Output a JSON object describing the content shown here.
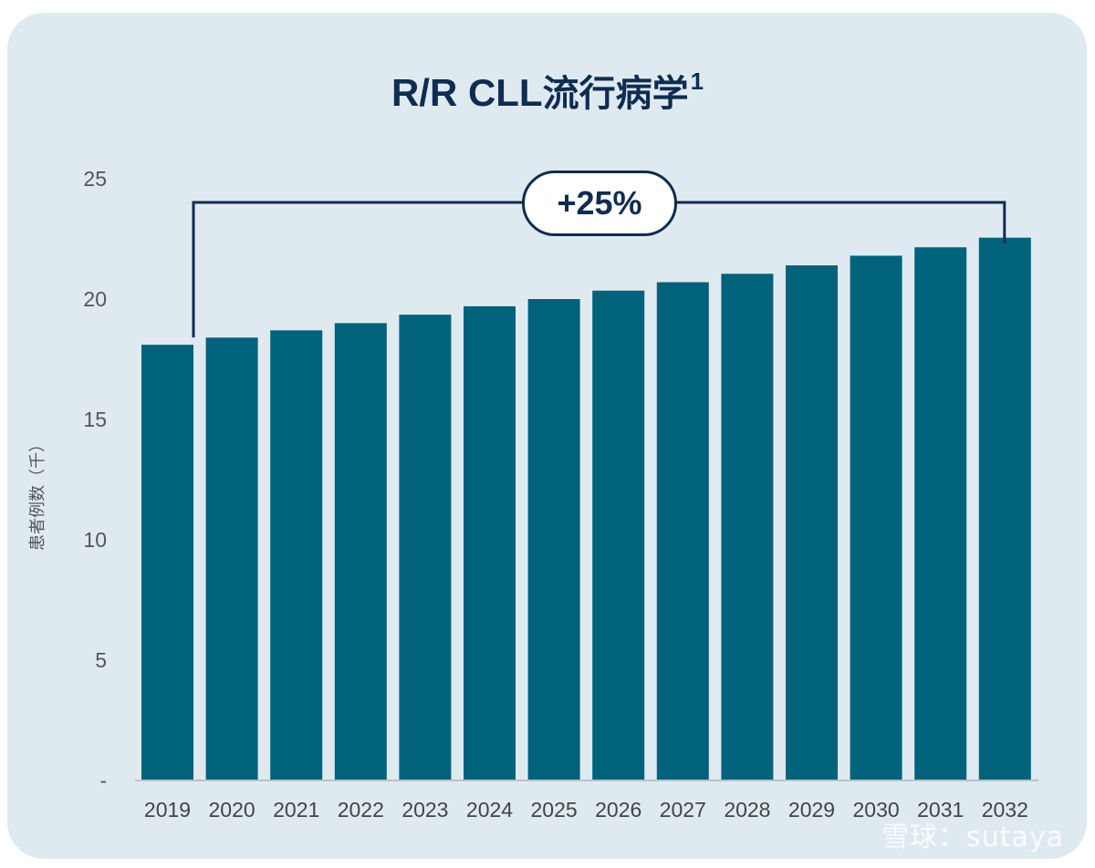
{
  "title": {
    "main": "R/R CLL",
    "cn": "流行病学",
    "sup": "1"
  },
  "annotation": {
    "label": "+25%"
  },
  "watermark": "雪球：sutaya",
  "colors": {
    "bar": "#00627b",
    "panel": "#dfeaf0",
    "text": "#0f2c52"
  },
  "chart_data": {
    "type": "bar",
    "title": "R/R CLL流行病学1",
    "ylabel": "患者例数（千）",
    "xlabel": "",
    "ylim": [
      0,
      25
    ],
    "yticks": [
      0,
      5,
      10,
      15,
      20,
      25
    ],
    "ytick_labels": [
      "-",
      "5",
      "10",
      "15",
      "20",
      "25"
    ],
    "categories": [
      "2019",
      "2020",
      "2021",
      "2022",
      "2023",
      "2024",
      "2025",
      "2026",
      "2027",
      "2028",
      "2029",
      "2030",
      "2031",
      "2032"
    ],
    "values": [
      18.1,
      18.4,
      18.7,
      19.0,
      19.35,
      19.7,
      20.0,
      20.35,
      20.7,
      21.05,
      21.4,
      21.8,
      22.15,
      22.55
    ],
    "grid": false,
    "legend": "none"
  }
}
